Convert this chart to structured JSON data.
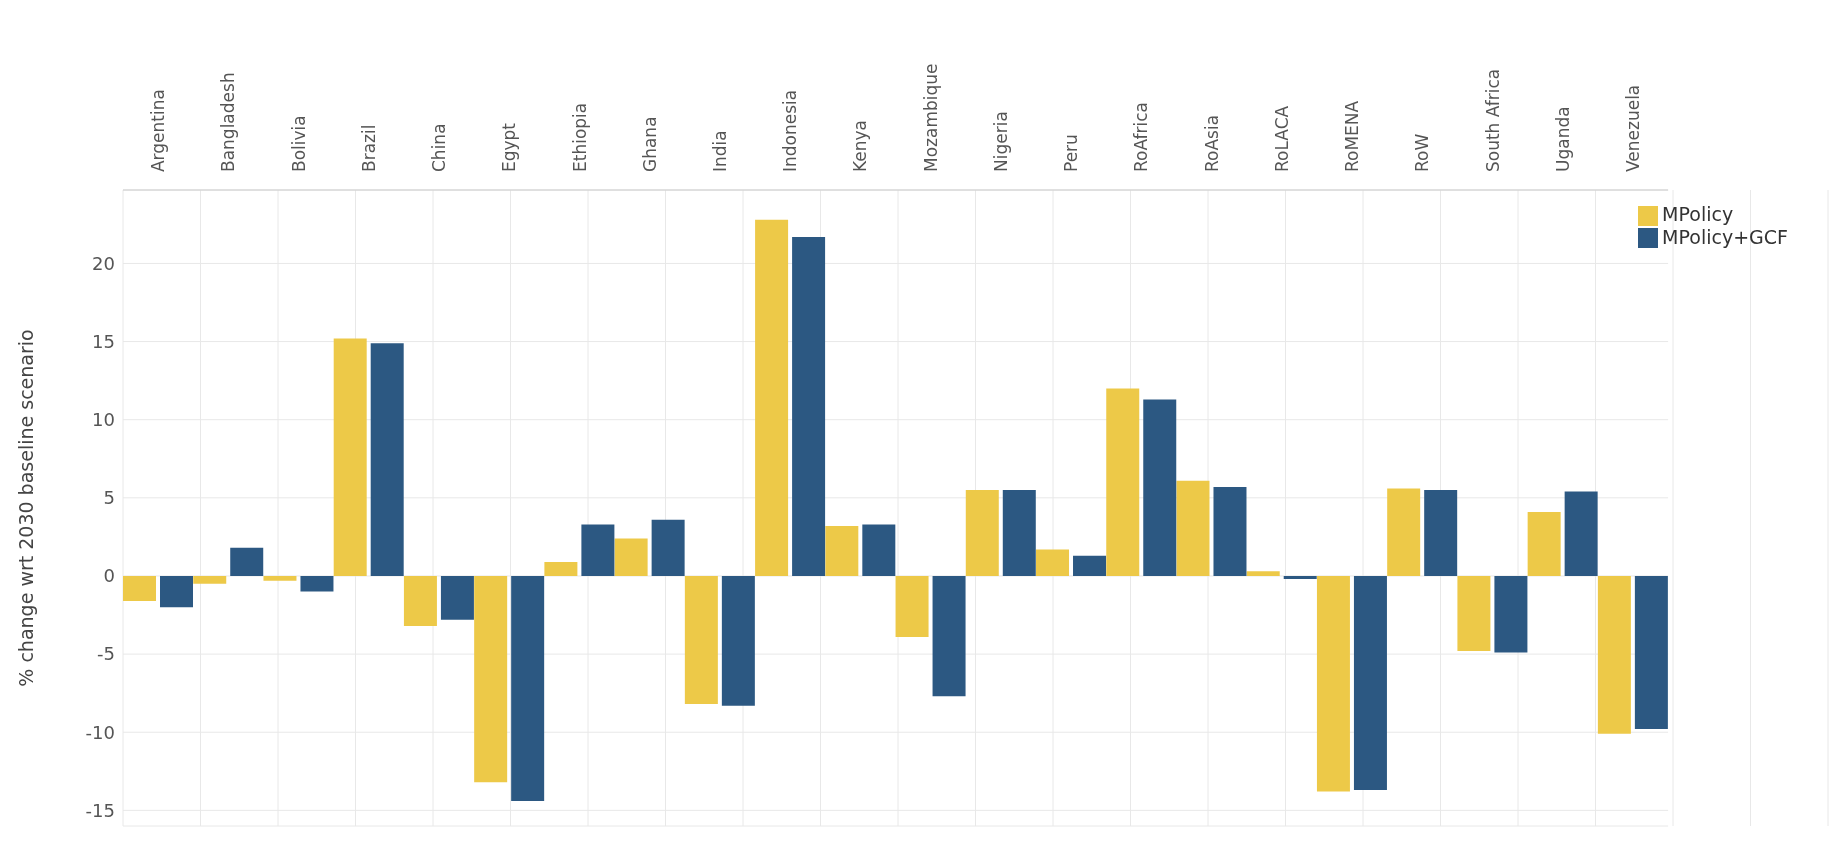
{
  "chart_data": {
    "type": "bar",
    "ylabel": "% change wrt 2030 baseline scenario",
    "categories": [
      "Argentina",
      "Bangladesh",
      "Bolivia",
      "Brazil",
      "China",
      "Egypt",
      "Ethiopia",
      "Ghana",
      "India",
      "Indonesia",
      "Kenya",
      "Mozambique",
      "Nigeria",
      "Peru",
      "RoAfrica",
      "RoAsia",
      "RoLACA",
      "RoMENA",
      "RoW",
      "South Africa",
      "Uganda",
      "Venezuela"
    ],
    "series": [
      {
        "name": "MPolicy",
        "color": "#edc948",
        "values": [
          -1.6,
          -0.5,
          -0.3,
          15.2,
          -3.2,
          -13.2,
          0.9,
          2.4,
          -8.2,
          22.8,
          3.2,
          -3.9,
          5.5,
          1.7,
          12.0,
          6.1,
          0.3,
          -13.8,
          5.6,
          -4.8,
          4.1,
          -10.1
        ]
      },
      {
        "name": "MPolicy+GCF",
        "color": "#2c5882",
        "values": [
          -2.0,
          1.8,
          -1.0,
          14.9,
          -2.8,
          -14.4,
          3.3,
          3.6,
          -8.3,
          21.7,
          3.3,
          -7.7,
          5.5,
          1.3,
          11.3,
          5.7,
          -0.2,
          -13.7,
          5.5,
          -4.9,
          5.4,
          -9.8
        ]
      }
    ],
    "ylim": [
      -16,
      24.7
    ],
    "yticks": [
      -15,
      -10,
      -5,
      0,
      5,
      10,
      15,
      20
    ],
    "grid": true,
    "legend": "top right"
  }
}
